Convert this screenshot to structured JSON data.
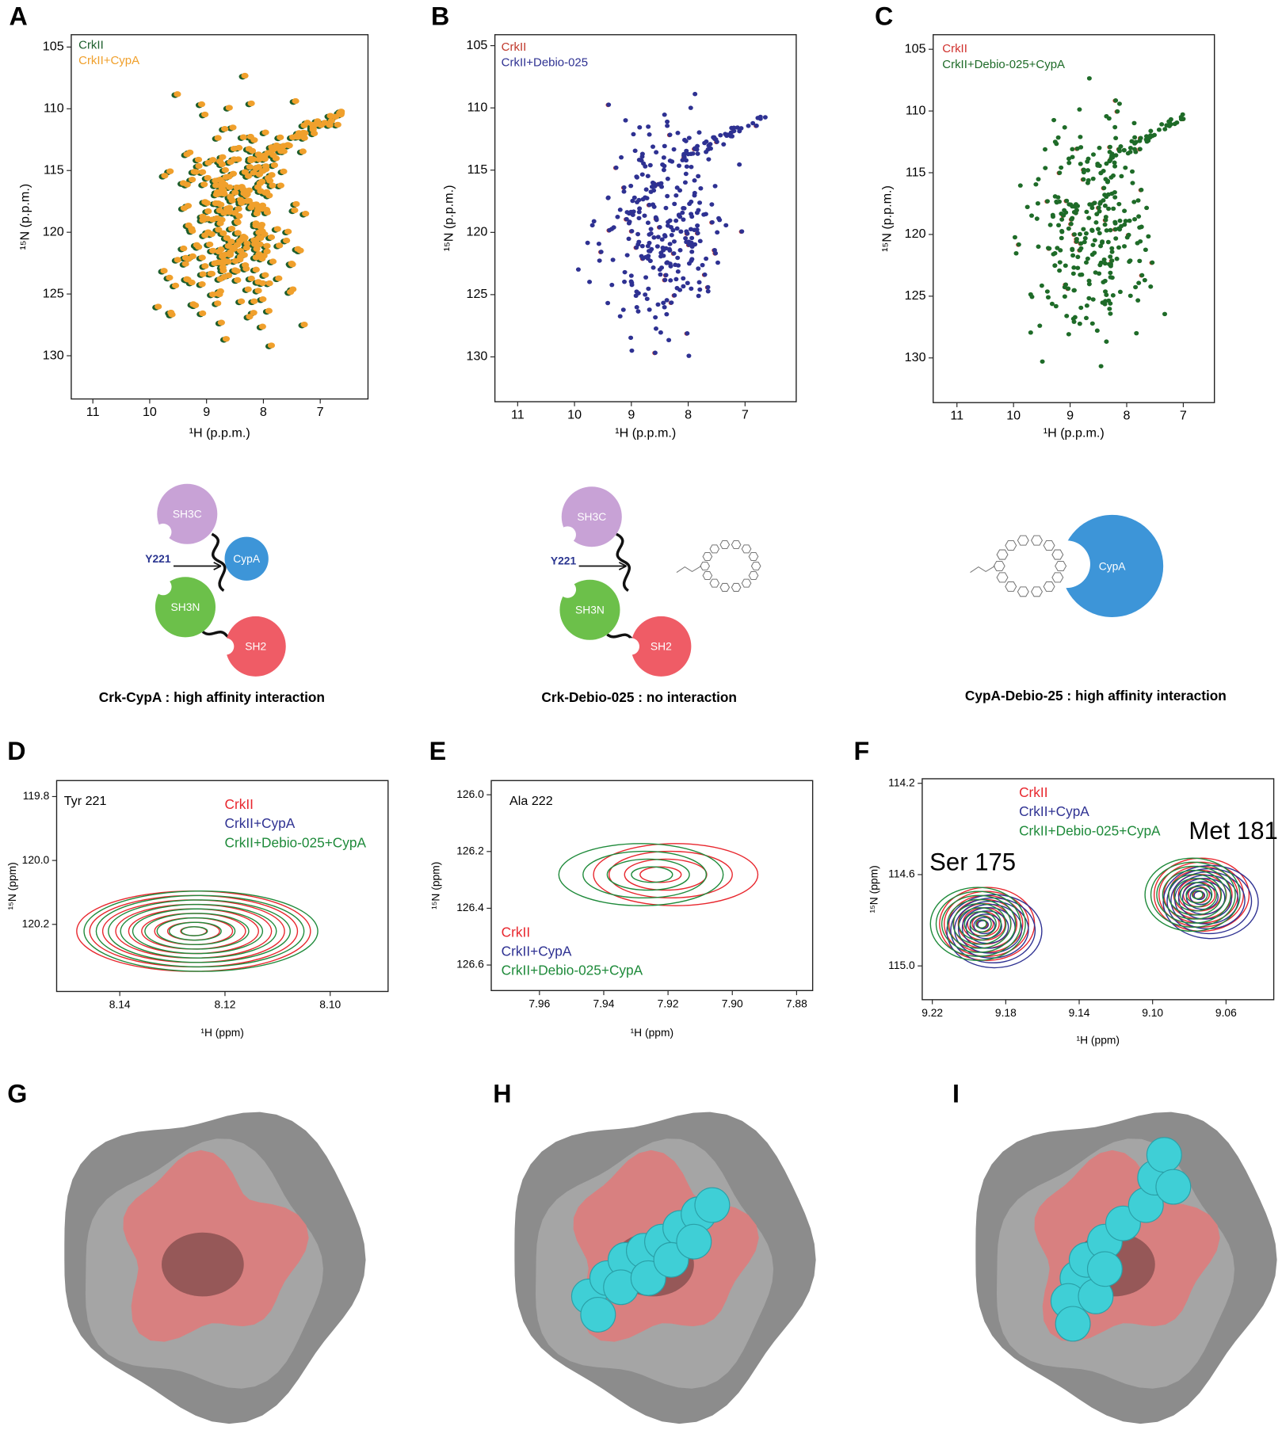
{
  "panels": [
    {
      "letter": "A",
      "legend": [
        {
          "name": "CrkII",
          "color": "#1d5e2c"
        },
        {
          "name": "CrkII+CypA",
          "color": "#f0a02c"
        }
      ],
      "xlabel": "¹H (p.p.m.)",
      "ylabel": "¹⁵N (p.p.m.)",
      "xlim": [
        11.38,
        6.16
      ],
      "ylim": [
        104,
        133.5
      ],
      "xticks": [
        11,
        10,
        9,
        8,
        7
      ],
      "yticks": [
        105,
        110,
        115,
        120,
        125,
        130
      ]
    },
    {
      "letter": "B",
      "legend": [
        {
          "name": "CrkII",
          "color": "#c0392b"
        },
        {
          "name": "CrkII+Debio-025",
          "color": "#2e3192"
        }
      ],
      "xlabel": "¹H (p.p.m.)",
      "ylabel": "¹⁵N (p.p.m.)",
      "xlim": [
        11.4,
        6.1
      ],
      "ylim": [
        104.12,
        133.6
      ],
      "xticks": [
        11,
        10,
        9,
        8,
        7
      ],
      "yticks": [
        105,
        110,
        115,
        120,
        125,
        130
      ]
    },
    {
      "letter": "C",
      "legend": [
        {
          "name": "CrkII",
          "color": "#d0312d"
        },
        {
          "name": "CrkII+Debio-025+CypA",
          "color": "#1e6b28"
        }
      ],
      "xlabel": "¹H (p.p.m.)",
      "ylabel": "¹⁵N (p.p.m.)",
      "xlim": [
        11.42,
        6.45
      ],
      "ylim": [
        103.82,
        133.62
      ],
      "xticks": [
        11,
        10,
        9,
        8,
        7
      ],
      "yticks": [
        105,
        110,
        115,
        120,
        125,
        130
      ]
    },
    {
      "letter": "D",
      "notes": [
        "Tyr 221"
      ],
      "legend": [
        {
          "name": "CrkII",
          "color": "#e8262d"
        },
        {
          "name": "CrkII+CypA",
          "color": "#2e3192"
        },
        {
          "name": "CrkII+Debio-025+CypA",
          "color": "#1e8a3a"
        }
      ],
      "xlabel": "¹H (ppm)",
      "ylabel": "¹⁵N (ppm)",
      "xlim": [
        8.152,
        8.089
      ],
      "ylim": [
        119.75,
        120.41
      ],
      "xticks": [
        8.14,
        8.12,
        {
          "value": 8.1,
          "label": "8.10"
        }
      ],
      "yticks": [
        119.8,
        {
          "value": 120,
          "label": "120.0"
        },
        120.2
      ]
    },
    {
      "letter": "E",
      "notes": [
        "Ala 222"
      ],
      "legend": [
        {
          "name": "CrkII",
          "color": "#e8262d"
        },
        {
          "name": "CrkII+CypA",
          "color": "#2e3192"
        },
        {
          "name": "CrkII+Debio-025+CypA",
          "color": "#1e8a3a"
        }
      ],
      "xlabel": "¹H (ppm)",
      "ylabel": "¹⁵N (ppm)",
      "xlim": [
        7.975,
        7.875
      ],
      "ylim": [
        125.95,
        126.69
      ],
      "xticks": [
        7.96,
        7.94,
        7.92,
        {
          "value": 7.9,
          "label": "7.90"
        },
        7.88
      ],
      "yticks": [
        {
          "value": 126,
          "label": "126.0"
        },
        126.2,
        126.4,
        126.6
      ]
    },
    {
      "letter": "F",
      "notes": [
        "Ser 175",
        "Met 181"
      ],
      "legend": [
        {
          "name": "CrkII",
          "color": "#e8262d"
        },
        {
          "name": "CrkII+CypA",
          "color": "#2e3192"
        },
        {
          "name": "CrkII+Debio-025+CypA",
          "color": "#1e8a3a"
        }
      ],
      "xlabel": "¹H (ppm)",
      "ylabel": "¹⁵N (ppm)",
      "xlim": [
        9.2255,
        9.034
      ],
      "ylim": [
        114.18,
        115.148
      ],
      "xticks": [
        9.22,
        9.18,
        9.14,
        {
          "value": 9.1,
          "label": "9.10"
        },
        9.06
      ],
      "yticks": [
        114.2,
        114.6,
        {
          "value": 115,
          "label": "115.0"
        }
      ]
    }
  ],
  "diagrams": [
    {
      "labels": [
        "SH3C",
        "CypA",
        "Y221",
        "SH3N",
        "SH2"
      ],
      "caption": "Crk-CypA : high affinity interaction"
    },
    {
      "labels": [
        "SH3C",
        "Y221",
        "SH3N",
        "SH2"
      ],
      "caption": "Crk-Debio-025 : no interaction"
    },
    {
      "labels": [
        "CypA"
      ],
      "caption": "CypA-Debio-25 : high affinity interaction"
    }
  ],
  "structures": [
    {
      "letter": "G"
    },
    {
      "letter": "H"
    },
    {
      "letter": "I"
    }
  ]
}
